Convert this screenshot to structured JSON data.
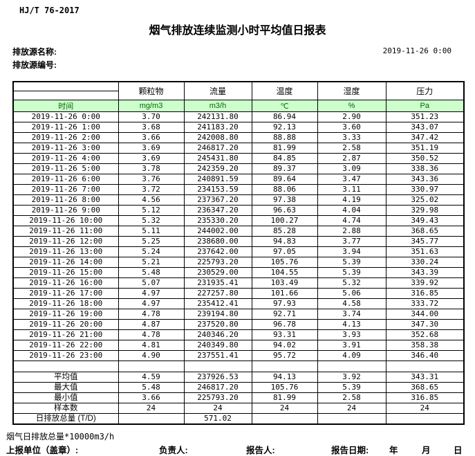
{
  "header": {
    "standard": "HJ/T  76-2017",
    "title": "烟气排放连续监测小时平均值日报表",
    "source_name_label": "排放源名称:",
    "source_code_label": "排放源编号:",
    "datetime": "2019-11-26 0:00"
  },
  "colors": {
    "unit_row_bg": "#ccffcc",
    "unit_row_text": "#006600"
  },
  "table": {
    "time_header": "时间",
    "param_headers": [
      "颗粒物",
      "流量",
      "温度",
      "湿度",
      "压力"
    ],
    "units": [
      "mg/m3",
      "m3/h",
      "℃",
      "%",
      "Pa"
    ],
    "rows": [
      {
        "time": "2019-11-26 0:00",
        "values": [
          "3.70",
          "242131.80",
          "86.94",
          "2.90",
          "351.23"
        ]
      },
      {
        "time": "2019-11-26 1:00",
        "values": [
          "3.68",
          "241183.20",
          "92.13",
          "3.60",
          "343.07"
        ]
      },
      {
        "time": "2019-11-26 2:00",
        "values": [
          "3.66",
          "242008.80",
          "88.88",
          "3.33",
          "347.42"
        ]
      },
      {
        "time": "2019-11-26 3:00",
        "values": [
          "3.69",
          "246817.20",
          "81.99",
          "2.58",
          "351.19"
        ]
      },
      {
        "time": "2019-11-26 4:00",
        "values": [
          "3.69",
          "245431.80",
          "84.85",
          "2.87",
          "350.52"
        ]
      },
      {
        "time": "2019-11-26 5:00",
        "values": [
          "3.78",
          "242359.20",
          "89.37",
          "3.09",
          "338.36"
        ]
      },
      {
        "time": "2019-11-26 6:00",
        "values": [
          "3.76",
          "240891.59",
          "89.64",
          "3.47",
          "343.36"
        ]
      },
      {
        "time": "2019-11-26 7:00",
        "values": [
          "3.72",
          "234153.59",
          "88.06",
          "3.11",
          "330.97"
        ]
      },
      {
        "time": "2019-11-26 8:00",
        "values": [
          "4.56",
          "237367.20",
          "97.38",
          "4.19",
          "325.02"
        ]
      },
      {
        "time": "2019-11-26 9:00",
        "values": [
          "5.12",
          "236347.20",
          "96.63",
          "4.04",
          "329.98"
        ]
      },
      {
        "time": "2019-11-26 10:00",
        "values": [
          "5.32",
          "235330.20",
          "100.27",
          "4.74",
          "349.43"
        ]
      },
      {
        "time": "2019-11-26 11:00",
        "values": [
          "5.11",
          "244002.00",
          "85.28",
          "2.88",
          "368.65"
        ]
      },
      {
        "time": "2019-11-26 12:00",
        "values": [
          "5.25",
          "238680.00",
          "94.83",
          "3.77",
          "345.77"
        ]
      },
      {
        "time": "2019-11-26 13:00",
        "values": [
          "5.24",
          "237642.00",
          "97.05",
          "3.94",
          "351.63"
        ]
      },
      {
        "time": "2019-11-26 14:00",
        "values": [
          "5.21",
          "225793.20",
          "105.76",
          "5.39",
          "330.24"
        ]
      },
      {
        "time": "2019-11-26 15:00",
        "values": [
          "5.48",
          "230529.00",
          "104.55",
          "5.39",
          "343.39"
        ]
      },
      {
        "time": "2019-11-26 16:00",
        "values": [
          "5.07",
          "231935.41",
          "103.49",
          "5.32",
          "339.92"
        ]
      },
      {
        "time": "2019-11-26 17:00",
        "values": [
          "4.97",
          "227257.80",
          "101.66",
          "5.06",
          "316.85"
        ]
      },
      {
        "time": "2019-11-26 18:00",
        "values": [
          "4.97",
          "235412.41",
          "97.93",
          "4.58",
          "333.72"
        ]
      },
      {
        "time": "2019-11-26 19:00",
        "values": [
          "4.78",
          "239194.80",
          "92.71",
          "3.74",
          "344.00"
        ]
      },
      {
        "time": "2019-11-26 20:00",
        "values": [
          "4.87",
          "237520.80",
          "96.78",
          "4.13",
          "347.30"
        ]
      },
      {
        "time": "2019-11-26 21:00",
        "values": [
          "4.78",
          "240346.20",
          "93.31",
          "3.93",
          "352.68"
        ]
      },
      {
        "time": "2019-11-26 22:00",
        "values": [
          "4.81",
          "240349.80",
          "94.02",
          "3.91",
          "358.38"
        ]
      },
      {
        "time": "2019-11-26 23:00",
        "values": [
          "4.90",
          "237551.41",
          "95.72",
          "4.09",
          "346.40"
        ]
      }
    ],
    "stats": [
      {
        "label": "平均值",
        "values": [
          "4.59",
          "237926.53",
          "94.13",
          "3.92",
          "343.31"
        ]
      },
      {
        "label": "最大值",
        "values": [
          "5.48",
          "246817.20",
          "105.76",
          "5.39",
          "368.65"
        ]
      },
      {
        "label": "最小值",
        "values": [
          "3.66",
          "225793.20",
          "81.99",
          "2.58",
          "316.85"
        ]
      },
      {
        "label": "样本数",
        "values": [
          "24",
          "24",
          "24",
          "24",
          "24"
        ]
      },
      {
        "label": "日排放总量 (T/D)",
        "values": [
          "",
          "571.02",
          "",
          "",
          ""
        ]
      }
    ]
  },
  "footer": {
    "note": "烟气日排放总量*10000m3/h",
    "report_unit_label": "上报单位（盖章）:",
    "responsible_label": "负责人:",
    "reporter_label": "报告人:",
    "report_date_label": "报告日期:",
    "year_label": "年",
    "month_label": "月",
    "day_label": "日"
  }
}
